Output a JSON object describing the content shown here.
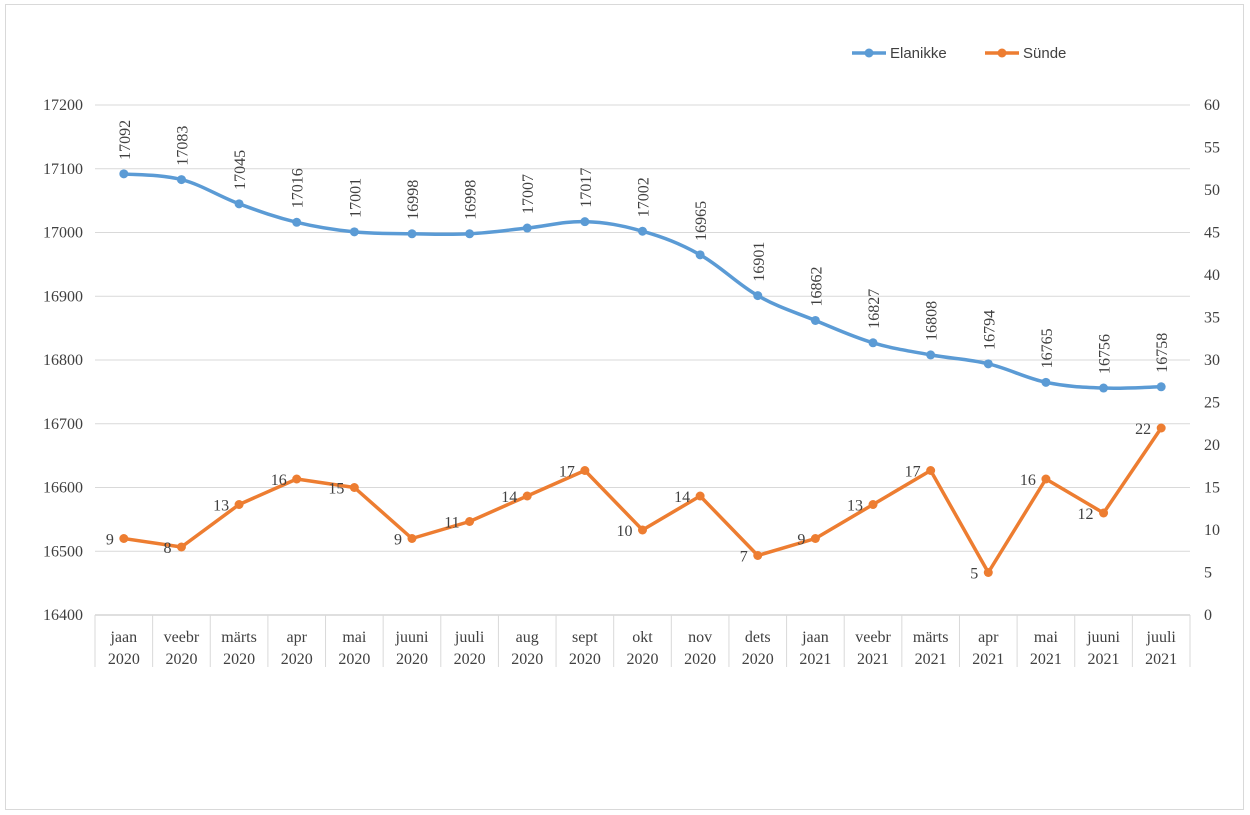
{
  "chart_data": {
    "type": "line",
    "legend_position": "top-right",
    "grid": true,
    "categories": [
      [
        "jaan",
        "2020"
      ],
      [
        "veebr",
        "2020"
      ],
      [
        "märts",
        "2020"
      ],
      [
        "apr",
        "2020"
      ],
      [
        "mai",
        "2020"
      ],
      [
        "juuni",
        "2020"
      ],
      [
        "juuli",
        "2020"
      ],
      [
        "aug",
        "2020"
      ],
      [
        "sept",
        "2020"
      ],
      [
        "okt",
        "2020"
      ],
      [
        "nov",
        "2020"
      ],
      [
        "dets",
        "2020"
      ],
      [
        "jaan",
        "2021"
      ],
      [
        "veebr",
        "2021"
      ],
      [
        "märts",
        "2021"
      ],
      [
        "apr",
        "2021"
      ],
      [
        "mai",
        "2021"
      ],
      [
        "juuni",
        "2021"
      ],
      [
        "juuli",
        "2021"
      ]
    ],
    "left_axis": {
      "min": 16400,
      "max": 17200,
      "step": 100
    },
    "right_axis": {
      "min": 0,
      "max": 60,
      "step": 5
    },
    "series": [
      {
        "name": "Elanikke",
        "axis": "left",
        "color": "#5B9BD5",
        "values": [
          17092,
          17083,
          17045,
          17016,
          17001,
          16998,
          16998,
          17007,
          17017,
          17002,
          16965,
          16901,
          16862,
          16827,
          16808,
          16794,
          16765,
          16756,
          16758
        ]
      },
      {
        "name": "Sünde",
        "axis": "right",
        "color": "#ED7D31",
        "values": [
          9,
          8,
          13,
          16,
          15,
          9,
          11,
          14,
          17,
          10,
          14,
          7,
          9,
          13,
          17,
          5,
          16,
          12,
          22
        ]
      }
    ]
  }
}
